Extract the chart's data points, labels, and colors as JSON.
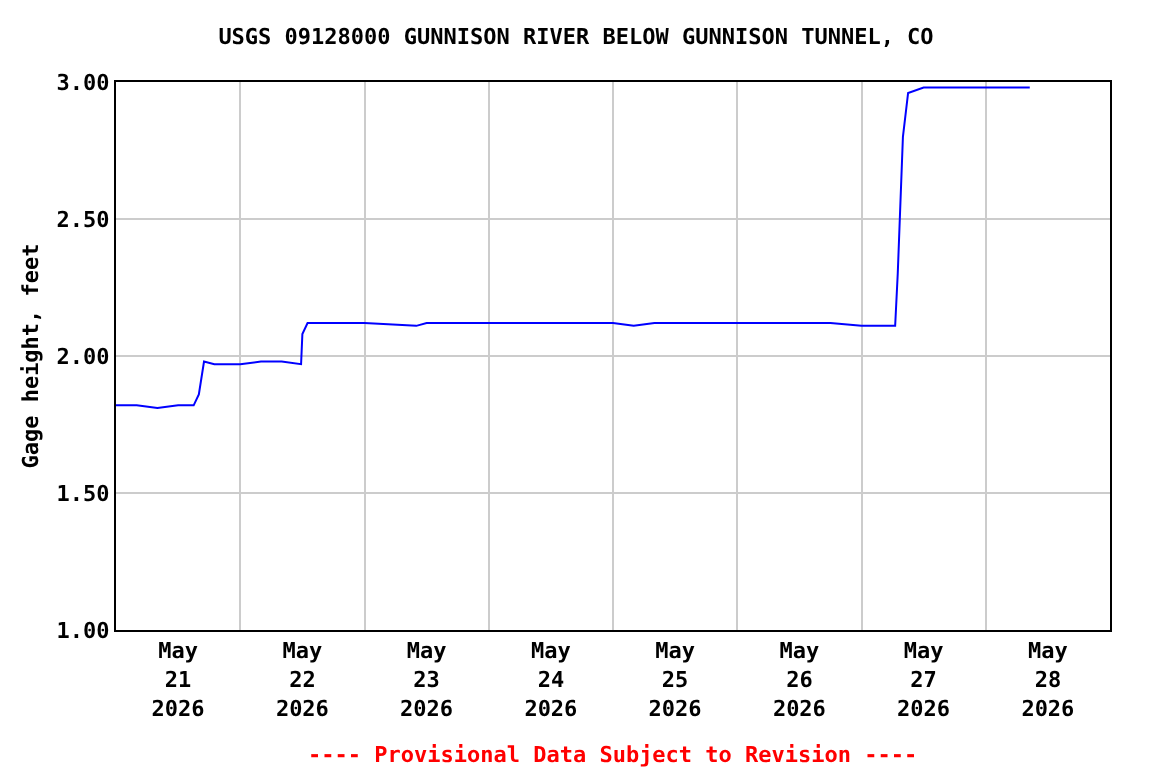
{
  "chart_data": {
    "type": "line",
    "title": "USGS 09128000 GUNNISON RIVER BELOW GUNNISON TUNNEL, CO",
    "ylabel": "Gage height, feet",
    "annotations": [
      "---- Provisional Data Subject to Revision ----"
    ],
    "series": [
      {
        "color": "#0000ff",
        "x": [
          "2026-05-21T00:00",
          "2026-05-21T04:00",
          "2026-05-21T08:00",
          "2026-05-21T12:00",
          "2026-05-21T15:00",
          "2026-05-21T16:00",
          "2026-05-21T17:00",
          "2026-05-21T19:00",
          "2026-05-22T00:00",
          "2026-05-22T04:00",
          "2026-05-22T08:00",
          "2026-05-22T11:45",
          "2026-05-22T12:00",
          "2026-05-22T13:00",
          "2026-05-23T00:00",
          "2026-05-23T10:00",
          "2026-05-23T12:00",
          "2026-05-24T00:00",
          "2026-05-25T00:00",
          "2026-05-25T04:00",
          "2026-05-25T08:00",
          "2026-05-26T00:00",
          "2026-05-26T18:00",
          "2026-05-27T00:00",
          "2026-05-27T06:30",
          "2026-05-27T07:00",
          "2026-05-27T08:00",
          "2026-05-27T09:00",
          "2026-05-27T12:00",
          "2026-05-28T00:00",
          "2026-05-28T08:30"
        ],
        "values": [
          1.82,
          1.82,
          1.81,
          1.82,
          1.82,
          1.86,
          1.98,
          1.97,
          1.97,
          1.98,
          1.98,
          1.97,
          2.08,
          2.12,
          2.12,
          2.11,
          2.12,
          2.12,
          2.12,
          2.11,
          2.12,
          2.12,
          2.12,
          2.11,
          2.11,
          2.3,
          2.8,
          2.96,
          2.98,
          2.98,
          2.98
        ]
      }
    ],
    "xlim": [
      "2026-05-21",
      "2026-05-29"
    ],
    "xticks": [
      {
        "value": "2026-05-21T12:00",
        "label": "May\n21\n2026"
      },
      {
        "value": "2026-05-22T12:00",
        "label": "May\n22\n2026"
      },
      {
        "value": "2026-05-23T12:00",
        "label": "May\n23\n2026"
      },
      {
        "value": "2026-05-24T12:00",
        "label": "May\n24\n2026"
      },
      {
        "value": "2026-05-25T12:00",
        "label": "May\n25\n2026"
      },
      {
        "value": "2026-05-26T12:00",
        "label": "May\n26\n2026"
      },
      {
        "value": "2026-05-27T12:00",
        "label": "May\n27\n2026"
      },
      {
        "value": "2026-05-28T12:00",
        "label": "May\n28\n2026"
      },
      {
        "value": "2026-05-22",
        "label": null
      },
      {
        "value": "2026-05-23",
        "label": null
      },
      {
        "value": "2026-05-24",
        "label": null
      },
      {
        "value": "2026-05-25",
        "label": null
      },
      {
        "value": "2026-05-26",
        "label": null
      },
      {
        "value": "2026-05-27",
        "label": null
      },
      {
        "value": "2026-05-28",
        "label": null
      }
    ],
    "ylim": [
      1,
      3
    ],
    "yticks": [
      {
        "value": 1,
        "label": "1.00"
      },
      {
        "value": 1.5,
        "label": "1.50"
      },
      {
        "value": 2,
        "label": "2.00"
      },
      {
        "value": 2.5,
        "label": "2.50"
      },
      {
        "value": 3,
        "label": "3.00"
      }
    ],
    "grid": true
  }
}
